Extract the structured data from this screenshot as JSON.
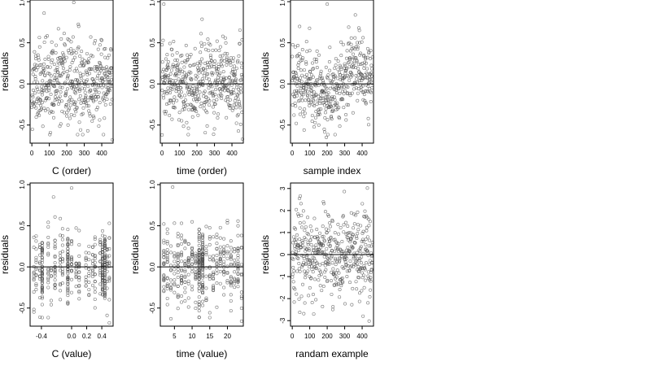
{
  "chart_data": [
    {
      "type": "scatter",
      "xlabel": "C (order)",
      "ylabel": "residuals",
      "xlim": [
        -10,
        465
      ],
      "ylim": [
        -0.72,
        1.02
      ],
      "xticks": [
        0,
        100,
        200,
        300,
        400
      ],
      "xtick_labels": [
        "0",
        "100",
        "200",
        "300",
        "400"
      ],
      "yticks": [
        -0.5,
        0,
        0.5,
        1
      ],
      "ytick_labels": [
        "-0.5",
        "0.0",
        "0.5",
        "1.0"
      ],
      "reference_line": 0,
      "gen": {
        "kind": "index",
        "n": 460,
        "seed": 11,
        "sd": 0.25,
        "outliers": [
          [
            70,
            0.86
          ],
          [
            240,
            0.99
          ],
          [
            460,
            -0.68
          ]
        ]
      }
    },
    {
      "type": "scatter",
      "xlabel": "time (order)",
      "ylabel": "residuals",
      "xlim": [
        -10,
        465
      ],
      "ylim": [
        -0.72,
        1.02
      ],
      "xticks": [
        0,
        100,
        200,
        300,
        400
      ],
      "xtick_labels": [
        "0",
        "100",
        "200",
        "300",
        "400"
      ],
      "yticks": [
        -0.5,
        0,
        0.5,
        1
      ],
      "ytick_labels": [
        "-0.5",
        "0.0",
        "0.5",
        "1.0"
      ],
      "reference_line": 0,
      "gen": {
        "kind": "index",
        "n": 460,
        "seed": 23,
        "sd": 0.24,
        "outliers": [
          [
            10,
            0.97
          ],
          [
            0,
            -0.62
          ],
          [
            460,
            -0.67
          ]
        ]
      }
    },
    {
      "type": "scatter",
      "xlabel": "sample index",
      "ylabel": "residuals",
      "xlim": [
        -10,
        465
      ],
      "ylim": [
        -0.72,
        1.02
      ],
      "xticks": [
        0,
        100,
        200,
        300,
        400
      ],
      "xtick_labels": [
        "0",
        "100",
        "200",
        "300",
        "400"
      ],
      "yticks": [
        -0.5,
        0,
        0.5,
        1
      ],
      "ytick_labels": [
        "-0.5",
        "0.0",
        "0.5",
        "1.0"
      ],
      "reference_line": 0,
      "gen": {
        "kind": "index",
        "n": 460,
        "seed": 37,
        "sd": 0.22,
        "trend": true,
        "outliers": [
          [
            200,
            0.97
          ],
          [
            195,
            -0.65
          ]
        ]
      }
    },
    {
      "type": "scatter",
      "xlabel": "C (value)",
      "ylabel": "residuals",
      "xlim": [
        -0.55,
        0.55
      ],
      "ylim": [
        -0.72,
        1.02
      ],
      "xticks": [
        -0.4,
        0,
        0.2,
        0.4
      ],
      "xtick_labels": [
        "-0.4",
        "0.0",
        "0.2",
        "0.4"
      ],
      "yticks": [
        -0.5,
        0,
        0.5,
        1
      ],
      "ytick_labels": [
        "-0.5",
        "0.0",
        "0.5",
        "1.0"
      ],
      "reference_line": 0,
      "gen": {
        "kind": "columns",
        "n": 460,
        "seed": 41,
        "sd": 0.23,
        "columns": [
          -0.5,
          -0.47,
          -0.42,
          -0.39,
          -0.31,
          -0.27,
          -0.22,
          -0.15,
          -0.12,
          -0.05,
          0.0,
          0.06,
          0.1,
          0.19,
          0.23,
          0.28,
          0.31,
          0.38,
          0.41,
          0.44,
          0.47,
          0.5
        ],
        "dense": [
          -0.39,
          -0.05,
          0.41,
          0.44
        ],
        "outliers": [
          [
            -0.24,
            0.85
          ],
          [
            0.0,
            0.96
          ],
          [
            0.5,
            -0.68
          ]
        ]
      }
    },
    {
      "type": "scatter",
      "xlabel": "time (value)",
      "ylabel": "residuals",
      "xlim": [
        1,
        24.5
      ],
      "ylim": [
        -0.72,
        1.02
      ],
      "xticks": [
        5,
        10,
        15,
        20
      ],
      "xtick_labels": [
        "5",
        "10",
        "15",
        "20"
      ],
      "yticks": [
        -0.5,
        0,
        0.5,
        1
      ],
      "ytick_labels": [
        "-0.5",
        "0.0",
        "0.5",
        "1.0"
      ],
      "reference_line": 0,
      "gen": {
        "kind": "columns",
        "n": 460,
        "seed": 53,
        "sd": 0.23,
        "columns": [
          2,
          3,
          4,
          5,
          6,
          7,
          8,
          9,
          10,
          11,
          12,
          13,
          14,
          15,
          16,
          17,
          18,
          19,
          20,
          21,
          22,
          23,
          24
        ],
        "dense": [
          12,
          13
        ],
        "outliers": [
          [
            4.5,
            0.97
          ],
          [
            4,
            -0.63
          ],
          [
            24,
            -0.66
          ]
        ]
      }
    },
    {
      "type": "scatter",
      "xlabel": "randam example",
      "ylabel": "residuals",
      "xlim": [
        -10,
        465
      ],
      "ylim": [
        -3.25,
        3.25
      ],
      "xticks": [
        0,
        100,
        200,
        300,
        400
      ],
      "xtick_labels": [
        "0",
        "100",
        "200",
        "300",
        "400"
      ],
      "yticks": [
        -3,
        -2,
        -1,
        0,
        1,
        2,
        3
      ],
      "ytick_labels": [
        "-3",
        "-2",
        "-1",
        "0",
        "1",
        "2",
        "3"
      ],
      "reference_line": 0,
      "gen": {
        "kind": "index",
        "n": 460,
        "seed": 67,
        "sd": 1.0,
        "outliers": [
          [
            430,
            3.02
          ],
          [
            440,
            -3.02
          ]
        ]
      }
    }
  ],
  "colors": {
    "points": "#4a4a4a",
    "axes": "#000000",
    "background": "#ffffff"
  }
}
